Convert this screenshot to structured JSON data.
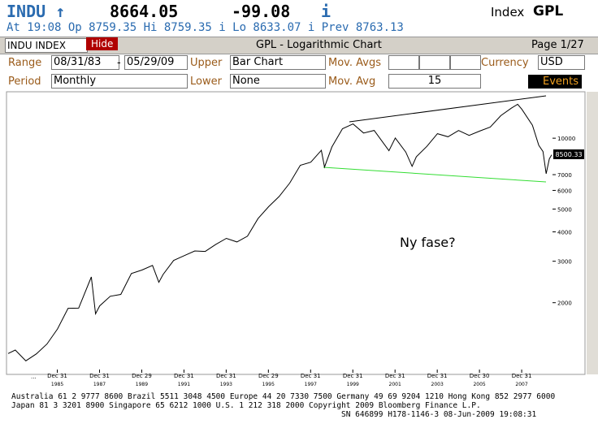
{
  "header": {
    "ticker": "INDU ↑",
    "price": "8664.05",
    "change": "-99.08",
    "info": "i",
    "index": "Index",
    "gpl": "GPL",
    "quote": "At 19:08 Op 8759.35   Hi 8759.35 i Lo 8633.07 i Prev 8763.13"
  },
  "toolbar": {
    "security": "INDU INDEX",
    "hide": "Hide",
    "title": "GPL - Logarithmic Chart",
    "page": "Page 1/27"
  },
  "settings": {
    "range_label": "Range",
    "range_start": "08/31/83",
    "range_sep": "-",
    "range_end": "05/29/09",
    "upper_label": "Upper",
    "upper": "Bar Chart",
    "mov_avgs_label": "Mov. Avgs",
    "currency_label": "Currency",
    "currency": "USD",
    "period_label": "Period",
    "period": "Monthly",
    "lower_label": "Lower",
    "lower": "None",
    "mov_avg_label": "Mov. Avg",
    "mov_avg": "15",
    "events": "Events"
  },
  "chart_data": {
    "type": "line",
    "log_scale": true,
    "color": "#000000",
    "annotation": "Ny fase?",
    "last_value_label": "8500.33",
    "first_xtick_label": "...",
    "xlim": [
      1983.66,
      2009.45
    ],
    "ylim": [
      1040,
      15500
    ],
    "yticks": [
      2000,
      3000,
      4000,
      5000,
      6000,
      7000,
      10000
    ],
    "xticks": [
      {
        "value": 1985.99,
        "label": "Dec 31"
      },
      {
        "value": 1987.99,
        "label": "Dec 31"
      },
      {
        "value": 1989.99,
        "label": "Dec 29"
      },
      {
        "value": 1991.99,
        "label": "Dec 31"
      },
      {
        "value": 1993.99,
        "label": "Dec 31"
      },
      {
        "value": 1995.99,
        "label": "Dec 29"
      },
      {
        "value": 1997.99,
        "label": "Dec 31"
      },
      {
        "value": 1999.99,
        "label": "Dec 31"
      },
      {
        "value": 2001.99,
        "label": "Dec 31"
      },
      {
        "value": 2003.99,
        "label": "Dec 31"
      },
      {
        "value": 2005.99,
        "label": "Dec 30"
      },
      {
        "value": 2007.99,
        "label": "Dec 31"
      }
    ],
    "xtick_years": [
      "1985",
      "1987",
      "1989",
      "1991",
      "1993",
      "1995",
      "1997",
      "1999",
      "2001",
      "2003",
      "2005",
      "2007"
    ],
    "x": [
      1983.66,
      1984.0,
      1984.5,
      1985.0,
      1985.5,
      1986.0,
      1986.5,
      1987.0,
      1987.6,
      1987.8,
      1988.0,
      1988.5,
      1989.0,
      1989.5,
      1990.0,
      1990.5,
      1990.8,
      1991.0,
      1991.5,
      1992.0,
      1992.5,
      1993.0,
      1993.5,
      1994.0,
      1994.5,
      1995.0,
      1995.5,
      1996.0,
      1996.5,
      1997.0,
      1997.5,
      1998.0,
      1998.5,
      1998.65,
      1999.0,
      1999.5,
      2000.0,
      2000.5,
      2001.0,
      2001.7,
      2002.0,
      2002.5,
      2002.8,
      2003.0,
      2003.5,
      2004.0,
      2004.5,
      2005.0,
      2005.5,
      2006.0,
      2006.5,
      2007.0,
      2007.5,
      2007.8,
      2008.0,
      2008.5,
      2008.8,
      2009.0,
      2009.15,
      2009.3,
      2009.41
    ],
    "values": [
      1216,
      1259,
      1132,
      1212,
      1335,
      1547,
      1893,
      1896,
      2572,
      1794,
      1939,
      2130,
      2169,
      2660,
      2753,
      2880,
      2442,
      2634,
      3024,
      3169,
      3318,
      3301,
      3539,
      3754,
      3624,
      3834,
      4556,
      5117,
      5654,
      6448,
      7672,
      7908,
      8883,
      7539,
      9181,
      10970,
      11497,
      10520,
      10787,
      8847,
      10021,
      8736,
      7592,
      8341,
      9233,
      10453,
      10139,
      10783,
      10275,
      10717,
      11150,
      12463,
      13408,
      13930,
      13264,
      11350,
      9325,
      8776,
      7063,
      8168,
      8500
    ]
  }
}
